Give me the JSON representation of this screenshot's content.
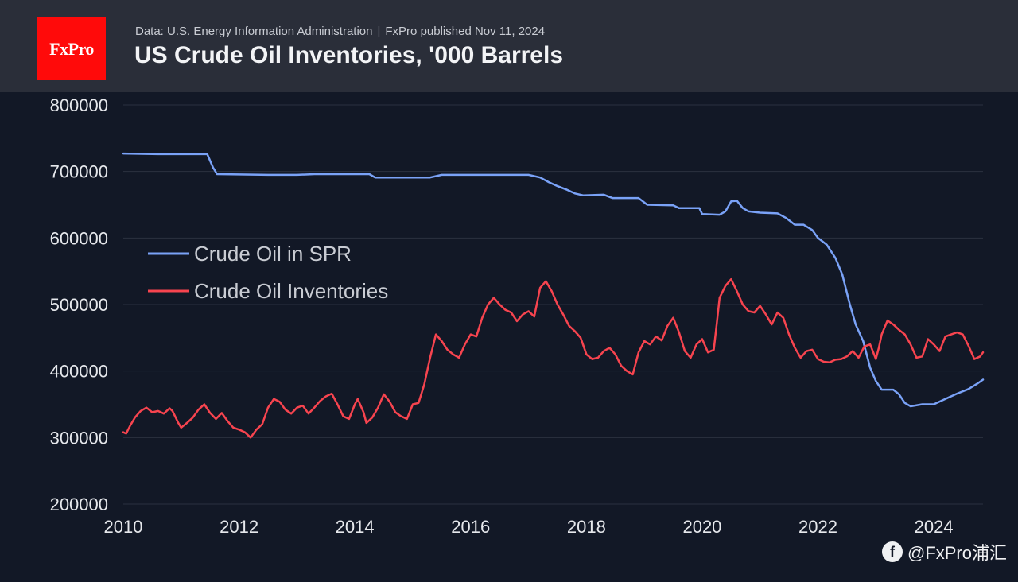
{
  "header": {
    "logo_text": "FxPro",
    "source_left": "Data: U.S. Energy Information Administration",
    "source_separator": "|",
    "source_right": "FxPro published Nov 11, 2024",
    "title": "US Crude Oil Inventories, '000 Barrels"
  },
  "footer": {
    "watermark": "@FxPro浦汇",
    "icon_name": "fxpro-badge-icon"
  },
  "colors": {
    "background": "#121826",
    "header_bg": "#2a2e39",
    "logo_red": "#ff0a0a",
    "spr_line": "#7aa2f7",
    "inventories_line": "#f7444f",
    "grid": "#2b3140",
    "text": "#e6e8ec"
  },
  "chart_data": {
    "type": "line",
    "title": "US Crude Oil Inventories, '000 Barrels",
    "xlim": [
      2010,
      2024.85
    ],
    "ylim": [
      200000,
      800000
    ],
    "y_ticks": [
      "200000",
      "300000",
      "400000",
      "500000",
      "600000",
      "700000",
      "800000"
    ],
    "x_ticks": [
      "2010",
      "2012",
      "2014",
      "2016",
      "2018",
      "2020",
      "2022",
      "2024"
    ],
    "grid": true,
    "legend_position": "upper-left",
    "series": [
      {
        "name": "Crude Oil in SPR",
        "points": [
          [
            2010.0,
            727000
          ],
          [
            2010.6,
            726000
          ],
          [
            2011.3,
            726000
          ],
          [
            2011.45,
            726000
          ],
          [
            2011.55,
            706000
          ],
          [
            2011.62,
            696000
          ],
          [
            2012.5,
            695000
          ],
          [
            2013.0,
            695000
          ],
          [
            2013.3,
            696000
          ],
          [
            2013.9,
            696000
          ],
          [
            2014.25,
            696000
          ],
          [
            2014.35,
            691000
          ],
          [
            2014.8,
            691000
          ],
          [
            2015.3,
            691000
          ],
          [
            2015.5,
            695000
          ],
          [
            2016.0,
            695000
          ],
          [
            2016.5,
            695000
          ],
          [
            2017.0,
            695000
          ],
          [
            2017.2,
            691000
          ],
          [
            2017.35,
            684000
          ],
          [
            2017.5,
            678000
          ],
          [
            2017.65,
            673000
          ],
          [
            2017.8,
            667000
          ],
          [
            2017.95,
            664000
          ],
          [
            2018.3,
            665000
          ],
          [
            2018.45,
            660000
          ],
          [
            2018.9,
            660000
          ],
          [
            2019.05,
            650000
          ],
          [
            2019.5,
            649000
          ],
          [
            2019.6,
            645000
          ],
          [
            2019.95,
            645000
          ],
          [
            2020.0,
            636000
          ],
          [
            2020.3,
            635000
          ],
          [
            2020.4,
            640000
          ],
          [
            2020.5,
            655000
          ],
          [
            2020.6,
            656000
          ],
          [
            2020.7,
            645000
          ],
          [
            2020.8,
            640000
          ],
          [
            2021.0,
            638000
          ],
          [
            2021.3,
            637000
          ],
          [
            2021.45,
            630000
          ],
          [
            2021.6,
            620000
          ],
          [
            2021.75,
            620000
          ],
          [
            2021.9,
            612000
          ],
          [
            2022.0,
            600000
          ],
          [
            2022.15,
            590000
          ],
          [
            2022.3,
            570000
          ],
          [
            2022.42,
            545000
          ],
          [
            2022.55,
            500000
          ],
          [
            2022.65,
            470000
          ],
          [
            2022.78,
            445000
          ],
          [
            2022.9,
            405000
          ],
          [
            2023.0,
            385000
          ],
          [
            2023.1,
            372000
          ],
          [
            2023.3,
            372000
          ],
          [
            2023.4,
            365000
          ],
          [
            2023.5,
            352000
          ],
          [
            2023.6,
            347000
          ],
          [
            2023.8,
            350000
          ],
          [
            2024.0,
            350000
          ],
          [
            2024.2,
            358000
          ],
          [
            2024.4,
            366000
          ],
          [
            2024.6,
            373000
          ],
          [
            2024.75,
            381000
          ],
          [
            2024.85,
            387000
          ]
        ]
      },
      {
        "name": "Crude Oil Inventories",
        "points": [
          [
            2010.0,
            308000
          ],
          [
            2010.05,
            306000
          ],
          [
            2010.12,
            318000
          ],
          [
            2010.2,
            330000
          ],
          [
            2010.3,
            340000
          ],
          [
            2010.4,
            345000
          ],
          [
            2010.5,
            338000
          ],
          [
            2010.6,
            340000
          ],
          [
            2010.7,
            336000
          ],
          [
            2010.8,
            344000
          ],
          [
            2010.85,
            340000
          ],
          [
            2010.95,
            322000
          ],
          [
            2011.0,
            315000
          ],
          [
            2011.1,
            322000
          ],
          [
            2011.2,
            330000
          ],
          [
            2011.3,
            342000
          ],
          [
            2011.4,
            350000
          ],
          [
            2011.5,
            337000
          ],
          [
            2011.6,
            328000
          ],
          [
            2011.7,
            337000
          ],
          [
            2011.8,
            325000
          ],
          [
            2011.9,
            315000
          ],
          [
            2012.0,
            312000
          ],
          [
            2012.1,
            308000
          ],
          [
            2012.2,
            300000
          ],
          [
            2012.3,
            312000
          ],
          [
            2012.4,
            320000
          ],
          [
            2012.5,
            345000
          ],
          [
            2012.6,
            358000
          ],
          [
            2012.7,
            354000
          ],
          [
            2012.8,
            342000
          ],
          [
            2012.9,
            336000
          ],
          [
            2013.0,
            345000
          ],
          [
            2013.1,
            348000
          ],
          [
            2013.2,
            336000
          ],
          [
            2013.3,
            345000
          ],
          [
            2013.4,
            355000
          ],
          [
            2013.5,
            362000
          ],
          [
            2013.6,
            366000
          ],
          [
            2013.7,
            350000
          ],
          [
            2013.8,
            332000
          ],
          [
            2013.9,
            328000
          ],
          [
            2014.0,
            350000
          ],
          [
            2014.05,
            358000
          ],
          [
            2014.15,
            338000
          ],
          [
            2014.2,
            322000
          ],
          [
            2014.3,
            330000
          ],
          [
            2014.4,
            345000
          ],
          [
            2014.5,
            365000
          ],
          [
            2014.6,
            354000
          ],
          [
            2014.7,
            338000
          ],
          [
            2014.8,
            332000
          ],
          [
            2014.9,
            328000
          ],
          [
            2015.0,
            350000
          ],
          [
            2015.1,
            352000
          ],
          [
            2015.2,
            380000
          ],
          [
            2015.3,
            420000
          ],
          [
            2015.4,
            455000
          ],
          [
            2015.5,
            445000
          ],
          [
            2015.6,
            432000
          ],
          [
            2015.7,
            425000
          ],
          [
            2015.8,
            420000
          ],
          [
            2015.9,
            440000
          ],
          [
            2016.0,
            455000
          ],
          [
            2016.1,
            452000
          ],
          [
            2016.2,
            480000
          ],
          [
            2016.3,
            500000
          ],
          [
            2016.4,
            510000
          ],
          [
            2016.5,
            500000
          ],
          [
            2016.6,
            492000
          ],
          [
            2016.7,
            488000
          ],
          [
            2016.8,
            475000
          ],
          [
            2016.9,
            485000
          ],
          [
            2017.0,
            490000
          ],
          [
            2017.1,
            482000
          ],
          [
            2017.2,
            525000
          ],
          [
            2017.3,
            535000
          ],
          [
            2017.4,
            520000
          ],
          [
            2017.5,
            500000
          ],
          [
            2017.6,
            485000
          ],
          [
            2017.7,
            468000
          ],
          [
            2017.8,
            460000
          ],
          [
            2017.9,
            450000
          ],
          [
            2018.0,
            425000
          ],
          [
            2018.1,
            418000
          ],
          [
            2018.2,
            420000
          ],
          [
            2018.3,
            430000
          ],
          [
            2018.4,
            435000
          ],
          [
            2018.5,
            425000
          ],
          [
            2018.6,
            408000
          ],
          [
            2018.7,
            400000
          ],
          [
            2018.8,
            395000
          ],
          [
            2018.9,
            428000
          ],
          [
            2019.0,
            445000
          ],
          [
            2019.1,
            440000
          ],
          [
            2019.2,
            452000
          ],
          [
            2019.3,
            446000
          ],
          [
            2019.4,
            468000
          ],
          [
            2019.5,
            480000
          ],
          [
            2019.6,
            458000
          ],
          [
            2019.7,
            430000
          ],
          [
            2019.8,
            420000
          ],
          [
            2019.9,
            440000
          ],
          [
            2020.0,
            448000
          ],
          [
            2020.1,
            428000
          ],
          [
            2020.2,
            432000
          ],
          [
            2020.25,
            470000
          ],
          [
            2020.3,
            510000
          ],
          [
            2020.4,
            528000
          ],
          [
            2020.5,
            538000
          ],
          [
            2020.6,
            520000
          ],
          [
            2020.7,
            500000
          ],
          [
            2020.8,
            490000
          ],
          [
            2020.9,
            488000
          ],
          [
            2021.0,
            498000
          ],
          [
            2021.1,
            485000
          ],
          [
            2021.2,
            470000
          ],
          [
            2021.3,
            488000
          ],
          [
            2021.4,
            480000
          ],
          [
            2021.5,
            455000
          ],
          [
            2021.6,
            435000
          ],
          [
            2021.7,
            420000
          ],
          [
            2021.8,
            430000
          ],
          [
            2021.9,
            432000
          ],
          [
            2022.0,
            418000
          ],
          [
            2022.1,
            414000
          ],
          [
            2022.2,
            413000
          ],
          [
            2022.3,
            417000
          ],
          [
            2022.4,
            418000
          ],
          [
            2022.5,
            422000
          ],
          [
            2022.6,
            430000
          ],
          [
            2022.7,
            420000
          ],
          [
            2022.8,
            437000
          ],
          [
            2022.9,
            440000
          ],
          [
            2023.0,
            418000
          ],
          [
            2023.05,
            435000
          ],
          [
            2023.1,
            455000
          ],
          [
            2023.2,
            476000
          ],
          [
            2023.3,
            470000
          ],
          [
            2023.4,
            462000
          ],
          [
            2023.5,
            455000
          ],
          [
            2023.6,
            440000
          ],
          [
            2023.7,
            420000
          ],
          [
            2023.8,
            422000
          ],
          [
            2023.9,
            448000
          ],
          [
            2024.0,
            440000
          ],
          [
            2024.1,
            430000
          ],
          [
            2024.2,
            452000
          ],
          [
            2024.3,
            455000
          ],
          [
            2024.4,
            458000
          ],
          [
            2024.5,
            455000
          ],
          [
            2024.6,
            438000
          ],
          [
            2024.7,
            418000
          ],
          [
            2024.8,
            422000
          ],
          [
            2024.85,
            428000
          ]
        ]
      }
    ]
  }
}
